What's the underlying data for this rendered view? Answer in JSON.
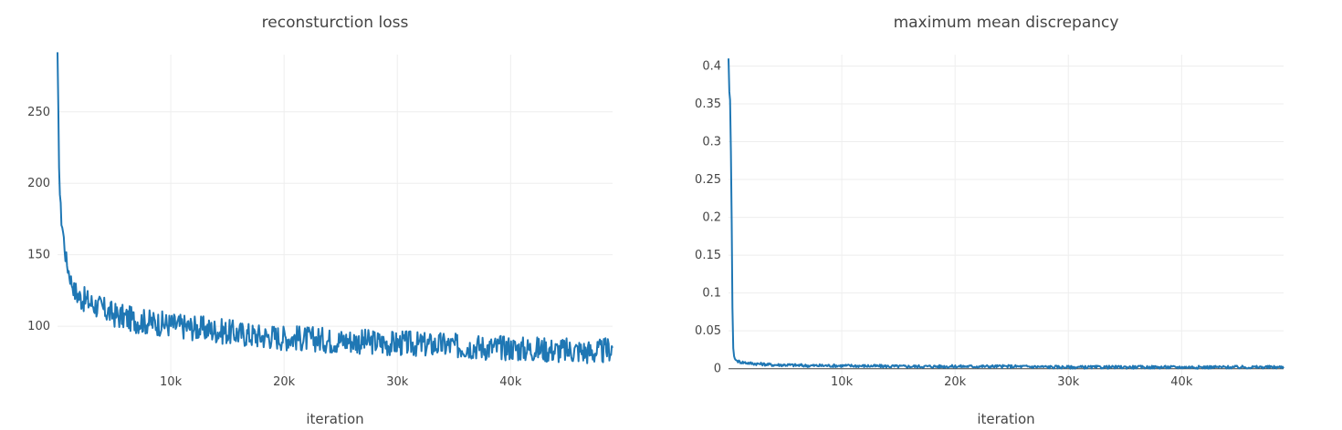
{
  "chart_data": [
    {
      "type": "line",
      "title": "reconsturction loss",
      "xlabel": "iteration",
      "ylabel": "",
      "xlim": [
        0,
        49000
      ],
      "ylim": [
        65,
        290
      ],
      "x_ticks": [
        10000,
        20000,
        30000,
        40000
      ],
      "x_tick_labels": [
        "10k",
        "20k",
        "30k",
        "40k"
      ],
      "y_ticks": [
        100,
        150,
        200,
        250
      ],
      "y_tick_labels": [
        "100",
        "150",
        "200",
        "250"
      ],
      "grid": true,
      "zero_line": false,
      "color": "#1f77b4",
      "series": [
        {
          "x": [
            0,
            100,
            200,
            300,
            400,
            500,
            600,
            700,
            800,
            1000,
            1200,
            1500,
            2000,
            2500,
            3000,
            3500,
            4000,
            5000,
            6000,
            7000,
            8000,
            9000,
            10000,
            11000,
            12000,
            13000,
            14000,
            15000,
            16000,
            17000,
            18000,
            19000,
            20000,
            21000,
            22000,
            23000,
            24000,
            25000,
            26000,
            27000,
            28000,
            29000,
            30000,
            31000,
            32000,
            33000,
            34000,
            35000,
            36000,
            37000,
            38000,
            39000,
            40000,
            41000,
            42000,
            43000,
            44000,
            45000,
            46000,
            47000,
            48000,
            49000
          ],
          "y": [
            287,
            230,
            195,
            178,
            172,
            165,
            158,
            150,
            145,
            138,
            132,
            125,
            120,
            118,
            116,
            114,
            112,
            108,
            106,
            104,
            103,
            102,
            101,
            100,
            99,
            98,
            97,
            96,
            95,
            94,
            93,
            93,
            92,
            92,
            91,
            91,
            90,
            90,
            90,
            89,
            89,
            88,
            88,
            88,
            87,
            87,
            87,
            86,
            86,
            86,
            85,
            85,
            85,
            84,
            84,
            84,
            83,
            83,
            83,
            82,
            82,
            85
          ]
        }
      ]
    },
    {
      "type": "line",
      "title": "maximum mean discrepancy",
      "xlabel": "iteration",
      "ylabel": "",
      "xlim": [
        0,
        49000
      ],
      "ylim": [
        -0.01,
        0.415
      ],
      "x_ticks": [
        10000,
        20000,
        30000,
        40000
      ],
      "x_tick_labels": [
        "10k",
        "20k",
        "30k",
        "40k"
      ],
      "y_ticks": [
        0,
        0.05,
        0.1,
        0.15,
        0.2,
        0.25,
        0.3,
        0.35,
        0.4
      ],
      "y_tick_labels": [
        "0",
        "0.05",
        "0.1",
        "0.15",
        "0.2",
        "0.25",
        "0.3",
        "0.35",
        "0.4"
      ],
      "grid": true,
      "zero_line": true,
      "color": "#1f77b4",
      "series": [
        {
          "x": [
            0,
            50,
            100,
            150,
            200,
            250,
            300,
            350,
            400,
            500,
            600,
            700,
            800,
            1000,
            1500,
            2000,
            3000,
            4000,
            5000,
            7000,
            10000,
            15000,
            20000,
            24500,
            25000,
            30000,
            35000,
            40000,
            45000,
            48000,
            49000
          ],
          "y": [
            0.41,
            0.36,
            0.375,
            0.35,
            0.3,
            0.24,
            0.16,
            0.08,
            0.03,
            0.015,
            0.012,
            0.011,
            0.01,
            0.009,
            0.008,
            0.007,
            0.006,
            0.005,
            0.005,
            0.004,
            0.004,
            0.003,
            0.003,
            0.003,
            0.003,
            0.002,
            0.002,
            0.002,
            0.002,
            0.002,
            0.002
          ]
        }
      ]
    }
  ]
}
